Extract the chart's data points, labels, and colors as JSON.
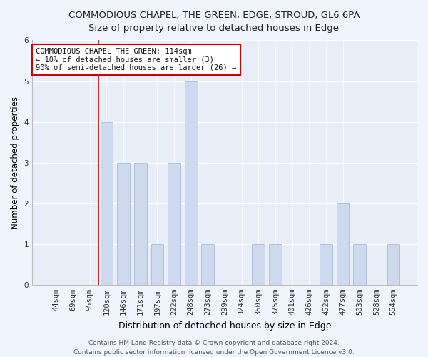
{
  "title": "COMMODIOUS CHAPEL, THE GREEN, EDGE, STROUD, GL6 6PA",
  "subtitle": "Size of property relative to detached houses in Edge",
  "xlabel": "Distribution of detached houses by size in Edge",
  "ylabel": "Number of detached properties",
  "categories": [
    "44sqm",
    "69sqm",
    "95sqm",
    "120sqm",
    "146sqm",
    "171sqm",
    "197sqm",
    "222sqm",
    "248sqm",
    "273sqm",
    "299sqm",
    "324sqm",
    "350sqm",
    "375sqm",
    "401sqm",
    "426sqm",
    "452sqm",
    "477sqm",
    "503sqm",
    "528sqm",
    "554sqm"
  ],
  "values": [
    0,
    0,
    0,
    4,
    3,
    3,
    1,
    3,
    5,
    1,
    0,
    0,
    1,
    1,
    0,
    0,
    1,
    2,
    1,
    0,
    1
  ],
  "bar_color": "#ccd9ee",
  "bar_edgecolor": "#aabbd6",
  "vline_index": 2.5,
  "vline_color": "#cc0000",
  "annotation_text": "COMMODIOUS CHAPEL THE GREEN: 114sqm\n← 10% of detached houses are smaller (3)\n90% of semi-detached houses are larger (26) →",
  "annotation_box_facecolor": "#ffffff",
  "annotation_box_edgecolor": "#cc0000",
  "ylim": [
    0,
    6
  ],
  "yticks": [
    0,
    1,
    2,
    3,
    4,
    5,
    6
  ],
  "footer_text": "Contains HM Land Registry data © Crown copyright and database right 2024.\nContains public sector information licensed under the Open Government Licence v3.0.",
  "title_fontsize": 9.5,
  "subtitle_fontsize": 9.5,
  "xlabel_fontsize": 9,
  "ylabel_fontsize": 8.5,
  "tick_fontsize": 7.5,
  "annotation_fontsize": 7.5,
  "footer_fontsize": 6.5,
  "plot_bg_color": "#e8eef8",
  "fig_bg_color": "#f0f4fc"
}
